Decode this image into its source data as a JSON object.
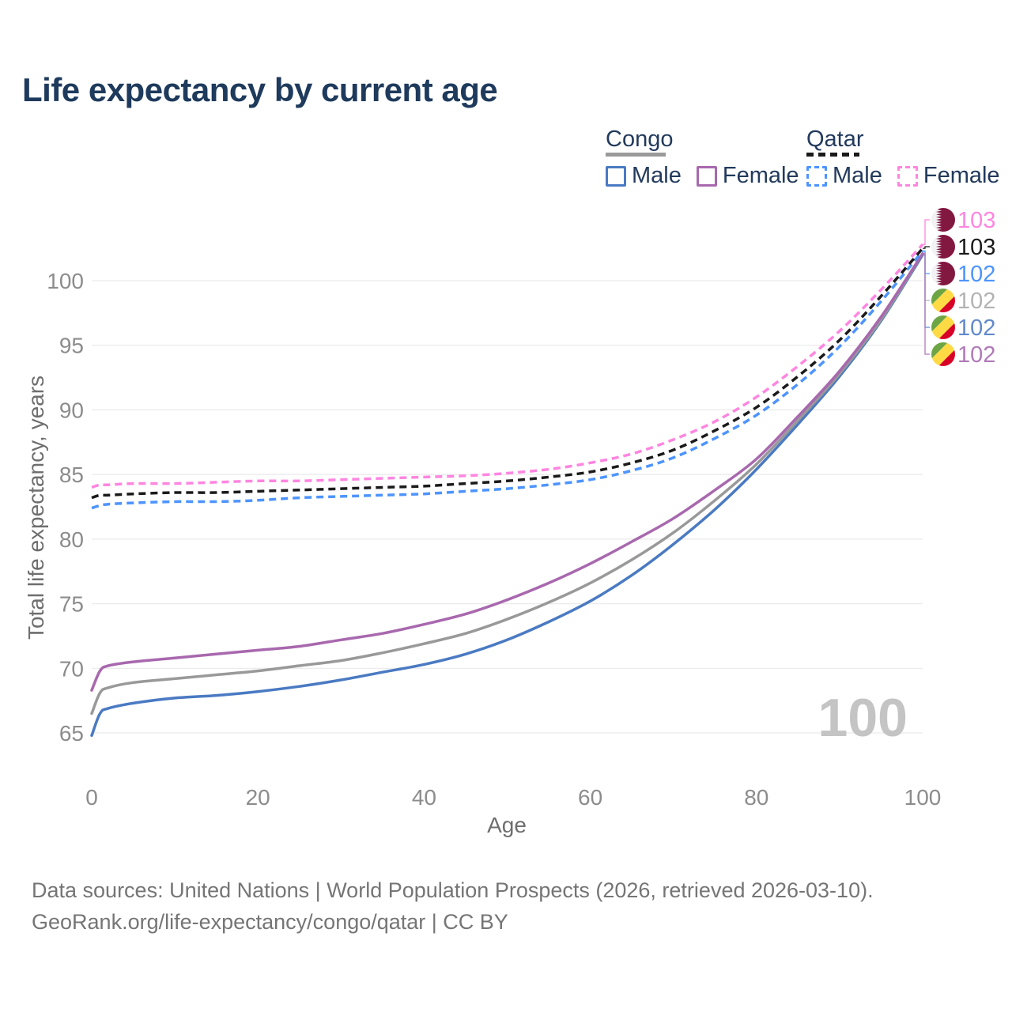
{
  "title": "Life expectancy by current age",
  "watermark": "100",
  "legend": {
    "congo": {
      "label": "Congo",
      "male": "Male",
      "female": "Female",
      "male_color": "#4a7ac2",
      "female_color": "#a868ae",
      "line_color": "#9a9a9a",
      "line_style": "solid"
    },
    "qatar": {
      "label": "Qatar",
      "male": "Male",
      "female": "Female",
      "male_color": "#4d94ff",
      "female_color": "#ff85e0",
      "line_color": "#1a1a1a",
      "line_style": "dashed"
    }
  },
  "footer": {
    "line1": "Data sources: United Nations | World Population Prospects (2026, retrieved 2026-03-10).",
    "line2": "GeoRank.org/life-expectancy/congo/qatar | CC BY"
  },
  "chart_data": {
    "type": "line",
    "title": "Life expectancy by current age",
    "xlabel": "Age",
    "ylabel": "Total life expectancy, years",
    "xlim": [
      0,
      100
    ],
    "ylim": [
      65,
      100
    ],
    "xticks": [
      0,
      20,
      40,
      60,
      80,
      100
    ],
    "yticks": [
      65,
      70,
      75,
      80,
      85,
      90,
      95,
      100
    ],
    "grid": "horizontal",
    "legend_position": "top-right",
    "grid_color": "#eaeaea",
    "tick_color": "#8c8c8c",
    "x": [
      0,
      1,
      2,
      5,
      10,
      15,
      20,
      25,
      30,
      35,
      40,
      45,
      50,
      55,
      60,
      65,
      70,
      75,
      80,
      85,
      90,
      95,
      100
    ],
    "series": [
      {
        "name": "congo_male",
        "country": "congo",
        "sex": "male",
        "color": "#4a7ac2",
        "dash": false,
        "values": [
          64.8,
          66.5,
          66.9,
          67.3,
          67.7,
          67.9,
          68.2,
          68.6,
          69.1,
          69.7,
          70.3,
          71.1,
          72.2,
          73.6,
          75.2,
          77.2,
          79.6,
          82.3,
          85.4,
          88.9,
          92.6,
          96.9,
          102.0
        ]
      },
      {
        "name": "congo_total",
        "country": "congo",
        "sex": "both",
        "color": "#999999",
        "dash": false,
        "values": [
          66.5,
          68.1,
          68.5,
          68.9,
          69.2,
          69.5,
          69.8,
          70.2,
          70.6,
          71.2,
          71.9,
          72.7,
          73.8,
          75.1,
          76.6,
          78.4,
          80.5,
          83.0,
          85.8,
          89.2,
          92.8,
          97.0,
          102.1
        ]
      },
      {
        "name": "congo_female",
        "country": "congo",
        "sex": "female",
        "color": "#a868ae",
        "dash": false,
        "values": [
          68.3,
          69.8,
          70.2,
          70.5,
          70.8,
          71.1,
          71.4,
          71.7,
          72.2,
          72.7,
          73.4,
          74.2,
          75.3,
          76.6,
          78.1,
          79.8,
          81.6,
          83.8,
          86.2,
          89.5,
          93.0,
          97.2,
          102.1
        ]
      },
      {
        "name": "qatar_male",
        "country": "qatar",
        "sex": "male",
        "color": "#4d94ff",
        "dash": true,
        "values": [
          82.4,
          82.6,
          82.7,
          82.8,
          82.9,
          82.9,
          83.0,
          83.2,
          83.3,
          83.4,
          83.5,
          83.7,
          83.9,
          84.2,
          84.6,
          85.3,
          86.3,
          87.8,
          89.6,
          92.0,
          94.9,
          98.4,
          102.3
        ]
      },
      {
        "name": "qatar_total",
        "country": "qatar",
        "sex": "both",
        "color": "#1a1a1a",
        "dash": true,
        "values": [
          83.2,
          83.4,
          83.4,
          83.5,
          83.6,
          83.6,
          83.7,
          83.8,
          83.9,
          84.0,
          84.1,
          84.3,
          84.5,
          84.8,
          85.2,
          85.9,
          86.9,
          88.4,
          90.2,
          92.6,
          95.4,
          98.8,
          102.5
        ]
      },
      {
        "name": "qatar_female",
        "country": "qatar",
        "sex": "female",
        "color": "#ff85e0",
        "dash": true,
        "values": [
          84.0,
          84.2,
          84.2,
          84.3,
          84.3,
          84.4,
          84.5,
          84.5,
          84.6,
          84.7,
          84.8,
          84.9,
          85.1,
          85.4,
          85.9,
          86.6,
          87.7,
          89.1,
          91.0,
          93.4,
          96.1,
          99.3,
          102.8
        ]
      }
    ],
    "end_labels": [
      {
        "series": "qatar_female",
        "text": "103",
        "color": "#ff85e0",
        "flag": "qatar"
      },
      {
        "series": "qatar_total",
        "text": "103",
        "color": "#1a1a1a",
        "flag": "qatar"
      },
      {
        "series": "qatar_male",
        "text": "102",
        "color": "#4d94ff",
        "flag": "qatar"
      },
      {
        "series": "congo_total",
        "text": "102",
        "color": "#b3b3b3",
        "flag": "congo"
      },
      {
        "series": "congo_male",
        "text": "102",
        "color": "#6189cb",
        "flag": "congo"
      },
      {
        "series": "congo_female",
        "text": "102",
        "color": "#b07ab8",
        "flag": "congo"
      }
    ],
    "flag_colors": {
      "qatar": {
        "maroon": "#821740",
        "white": "#f2f2f5"
      },
      "congo": {
        "green": "#6da544",
        "yellow": "#ffda44",
        "red": "#d80027"
      }
    }
  }
}
